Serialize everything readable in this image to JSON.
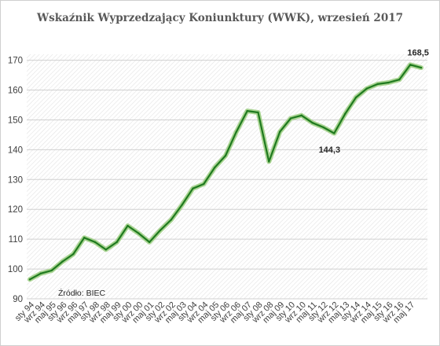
{
  "chart_data": {
    "type": "line",
    "title": "Wskaźnik Wyprzedzający Koniunktury (WWK),  wrzesień 2017",
    "xlabel": "",
    "ylabel": "",
    "ylim": [
      90,
      172
    ],
    "yticks": [
      90,
      100,
      110,
      120,
      130,
      140,
      150,
      160,
      170
    ],
    "grid": true,
    "legend": "none",
    "source": "Źródło: BIEC",
    "x_tick_labels": [
      "sty 94",
      "wrz 94",
      "maj 95",
      "sty 96",
      "wrz 96",
      "maj 97",
      "sty 98",
      "wrz 98",
      "maj 99",
      "sty 00",
      "wrz 00",
      "maj 01",
      "sty 02",
      "wrz 02",
      "maj 03",
      "sty 04",
      "wrz 04",
      "maj 05",
      "sty 06",
      "wrz 06",
      "maj 07",
      "sty 08",
      "wrz 08",
      "maj 09",
      "sty 10",
      "wrz 10",
      "maj 11",
      "sty 12",
      "wrz 12",
      "maj 13",
      "sty 14",
      "wrz 14",
      "maj 15",
      "sty 16",
      "wrz 16",
      "maj 17"
    ],
    "x": [
      "sty 94",
      "wrz 94",
      "maj 95",
      "sty 96",
      "wrz 96",
      "maj 97",
      "sty 98",
      "wrz 98",
      "maj 99",
      "sty 00",
      "wrz 00",
      "maj 01",
      "sty 02",
      "wrz 02",
      "maj 03",
      "sty 04",
      "wrz 04",
      "maj 05",
      "sty 06",
      "wrz 06",
      "maj 07",
      "sty 08",
      "wrz 08",
      "maj 09",
      "sty 10",
      "wrz 10",
      "maj 11",
      "sty 12",
      "wrz 12",
      "maj 13",
      "sty 14",
      "wrz 14",
      "maj 15",
      "sty 16",
      "wrz 16",
      "maj 17",
      "wrz 17"
    ],
    "series": [
      {
        "values": [
          96.5,
          98.5,
          99.5,
          102.5,
          105,
          110.5,
          109,
          106.5,
          109,
          114.5,
          112,
          109,
          113,
          116.5,
          121.5,
          127,
          128.5,
          134,
          138,
          146,
          153,
          152.5,
          136,
          146,
          150.5,
          151.5,
          149,
          147.5,
          145.5,
          152,
          157.5,
          160.5,
          162,
          162.5,
          163.5,
          168.5,
          167.5
        ],
        "color": "#1f7a1f"
      }
    ],
    "annotations": [
      {
        "label": "144,3",
        "x": "wrz 12",
        "y": 144.3
      },
      {
        "label": "168,5",
        "x": "maj 17",
        "y": 168.5
      }
    ]
  }
}
